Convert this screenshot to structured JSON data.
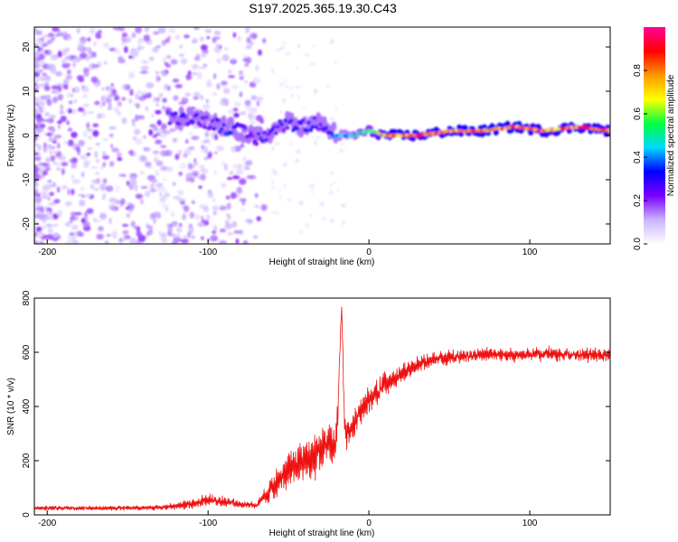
{
  "title": "S197.2025.365.19.30.C43",
  "chart_data": [
    {
      "type": "heatmap",
      "title": "S197.2025.365.19.30.C43",
      "xlabel": "Height of straight line (km)",
      "ylabel": "Frequency (Hz)",
      "xlim": [
        -208,
        150
      ],
      "ylim": [
        -24.5,
        24.5
      ],
      "x_ticks": [
        -200,
        -100,
        0,
        100
      ],
      "x_tick_labels": [
        "-200",
        "-100",
        "0",
        "100"
      ],
      "y_ticks": [
        -20,
        -10,
        0,
        10,
        20
      ],
      "y_tick_labels": [
        "-20",
        "-10",
        "0",
        "10",
        "20"
      ],
      "ridge": {
        "x": [
          -125,
          -110,
          -100,
          -90,
          -80,
          -70,
          -60,
          -50,
          -40,
          -30,
          -20,
          -10,
          0,
          10,
          30,
          50,
          70,
          90,
          110,
          130,
          150
        ],
        "freq": [
          4,
          4,
          3,
          2,
          1,
          -1,
          1,
          3,
          2,
          3,
          0,
          0,
          1,
          0,
          0,
          1,
          1,
          2,
          1,
          2,
          1
        ],
        "amplitude": [
          0.25,
          0.3,
          0.25,
          0.35,
          0.3,
          0.25,
          0.3,
          0.3,
          0.35,
          0.25,
          0.4,
          0.45,
          0.55,
          0.85,
          0.85,
          0.9,
          0.95,
          0.9,
          0.85,
          0.9,
          0.85
        ]
      },
      "noise_region": {
        "x_from": -208,
        "x_to": -65,
        "freq_range": [
          -24.5,
          24.5
        ],
        "amplitude_range": [
          0.05,
          0.2
        ]
      },
      "colorbar": {
        "label": "Normalized spectral amplitude",
        "range": [
          0,
          1
        ],
        "ticks": [
          0.0,
          0.2,
          0.4,
          0.6,
          0.8
        ],
        "tick_labels": [
          "0.0",
          "0.2",
          "0.4",
          "0.6",
          "0.8"
        ],
        "colors": [
          "#ffffff",
          "#c9b3ff",
          "#7a00ff",
          "#0000ff",
          "#00d9ff",
          "#00ff40",
          "#ffff00",
          "#ff9900",
          "#ff0000",
          "#ff0099"
        ]
      }
    },
    {
      "type": "line",
      "xlabel": "Height of straight line (km)",
      "ylabel": "SNR (10 * v/v)",
      "xlim": [
        -208,
        150
      ],
      "ylim": [
        0,
        800
      ],
      "x_ticks": [
        -200,
        -100,
        0,
        100
      ],
      "x_tick_labels": [
        "-200",
        "-100",
        "0",
        "100"
      ],
      "y_ticks": [
        0,
        200,
        400,
        600,
        800
      ],
      "y_tick_labels": [
        "0",
        "200",
        "400",
        "600",
        "800"
      ],
      "series": [
        {
          "name": "SNR",
          "color": "#ee1111",
          "x": [
            -208,
            -190,
            -170,
            -150,
            -130,
            -110,
            -100,
            -90,
            -80,
            -70,
            -60,
            -50,
            -40,
            -30,
            -20,
            -17,
            -15,
            -10,
            -5,
            0,
            10,
            20,
            30,
            40,
            50,
            70,
            90,
            110,
            130,
            150
          ],
          "mean": [
            25,
            25,
            25,
            25,
            28,
            40,
            55,
            50,
            40,
            35,
            100,
            170,
            200,
            230,
            270,
            780,
            300,
            330,
            380,
            420,
            480,
            520,
            555,
            575,
            580,
            590,
            590,
            595,
            590,
            590
          ],
          "spread": [
            15,
            15,
            15,
            15,
            18,
            30,
            40,
            35,
            25,
            20,
            80,
            120,
            140,
            160,
            140,
            20,
            120,
            110,
            100,
            90,
            80,
            60,
            50,
            45,
            45,
            45,
            45,
            45,
            45,
            45
          ]
        }
      ]
    }
  ]
}
